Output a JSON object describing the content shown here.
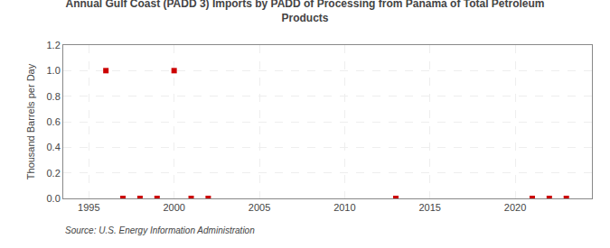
{
  "chart_data": {
    "type": "scatter",
    "title": "Annual Gulf Coast (PADD 3) Imports by PADD of Processing from Panama of Total Petroleum\nProducts",
    "ylabel": "Thousand Barrels per Day",
    "annotations": [
      "Source: U.S. Energy Information Administration"
    ],
    "x": [
      1996,
      1997,
      1998,
      1999,
      2000,
      2001,
      2002,
      2013,
      2021,
      2022,
      2023
    ],
    "values": [
      1.0,
      0.0,
      0.0,
      0.0,
      1.0,
      0.0,
      0.0,
      0.0,
      0.0,
      0.0,
      0.0
    ],
    "color": "#cc0000",
    "marker": "square",
    "xlim": [
      1993.5,
      2024.5
    ],
    "xticks": [
      1995,
      2000,
      2005,
      2010,
      2015,
      2020
    ],
    "ylim": [
      0.0,
      1.2
    ],
    "yticks": [
      {
        "value": 0.0,
        "label": "0.0"
      },
      0.2,
      0.4,
      0.6,
      0.8,
      {
        "value": 1.0,
        "label": "1.0"
      },
      1.2
    ],
    "grid": true
  }
}
